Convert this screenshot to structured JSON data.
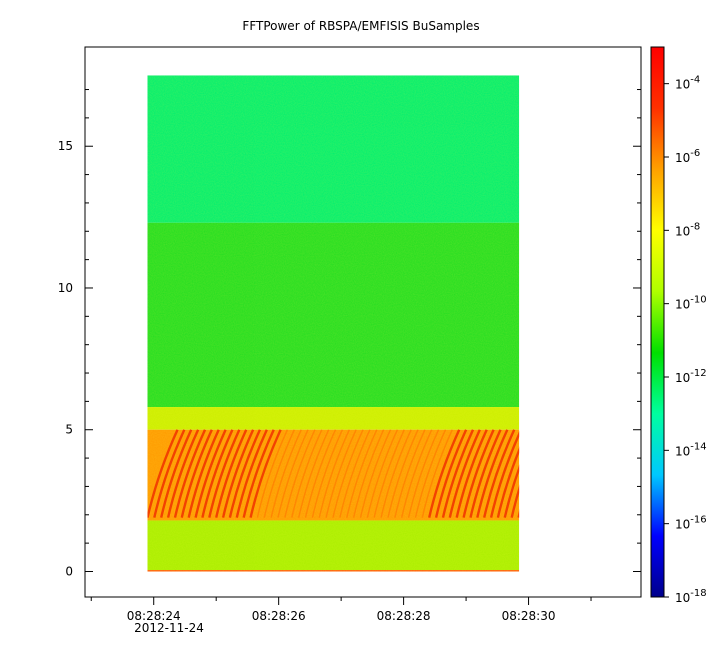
{
  "chart_data": {
    "type": "heatmap",
    "title": "FFTPower of RBSPA/EMFISIS  BuSamples",
    "xlabel": "",
    "ylabel": "",
    "x_ticks": [
      "08:28:24",
      "08:28:26",
      "08:28:28",
      "08:28:30"
    ],
    "x_tick_values": [
      24,
      26,
      28,
      30
    ],
    "x_date_label": "2012-11-24",
    "xlim": [
      22.9,
      31.8
    ],
    "y_ticks": [
      "0",
      "5",
      "10",
      "15"
    ],
    "y_tick_values": [
      0,
      5,
      10,
      15
    ],
    "ylim": [
      -0.9,
      18.5
    ],
    "data_x_range": [
      23.9,
      29.85
    ],
    "data_y_range": [
      0,
      17.5
    ],
    "colorbar": {
      "scale": "log",
      "range": [
        1e-18,
        0.001
      ],
      "ticks": [
        {
          "value": 0.0001,
          "base": "10",
          "exp": "-4"
        },
        {
          "value": 1e-06,
          "base": "10",
          "exp": "-6"
        },
        {
          "value": 1e-08,
          "base": "10",
          "exp": "-8"
        },
        {
          "value": 1e-10,
          "base": "10",
          "exp": "-10"
        },
        {
          "value": 1e-12,
          "base": "10",
          "exp": "-12"
        },
        {
          "value": 1e-14,
          "base": "10",
          "exp": "-14"
        },
        {
          "value": 1e-16,
          "base": "10",
          "exp": "-16"
        },
        {
          "value": 1e-18,
          "base": "10",
          "exp": "-18"
        }
      ],
      "colormap": [
        "#00008b",
        "#0000ff",
        "#00c8ff",
        "#00ffa0",
        "#00e000",
        "#b0ff00",
        "#ffff00",
        "#ffa000",
        "#ff3000",
        "#ff0000"
      ]
    },
    "bands": [
      {
        "y": [
          12.3,
          17.5
        ],
        "color": "#00ee70",
        "level": "~1e-12"
      },
      {
        "y": [
          5.8,
          12.3
        ],
        "color": "#22dd22",
        "level": "~1e-11"
      },
      {
        "y": [
          5.0,
          5.8
        ],
        "color": "#ccee00",
        "level": "~1e-9"
      },
      {
        "y": [
          1.8,
          5.0
        ],
        "color": "#ff9900",
        "level": "~1e-7"
      },
      {
        "y": [
          0.05,
          1.8
        ],
        "color": "#aaee00",
        "level": "~1e-9"
      },
      {
        "y": [
          0,
          0.05
        ],
        "color": "#ff5500",
        "level": "~1e-6"
      }
    ]
  }
}
